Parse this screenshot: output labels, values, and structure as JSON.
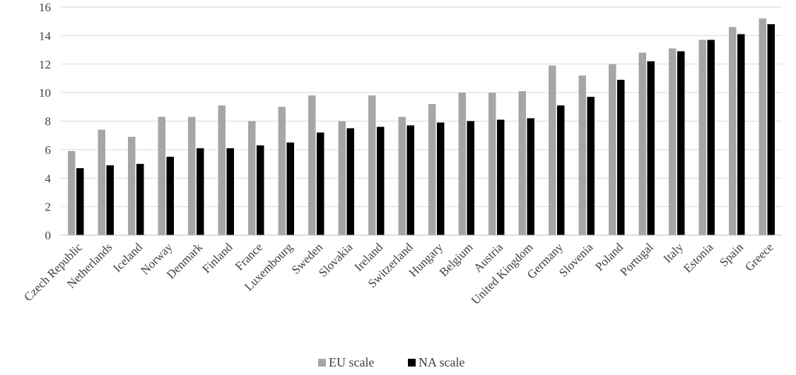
{
  "chart_data": {
    "type": "bar",
    "title": "",
    "xlabel": "",
    "ylabel": "",
    "ylim": [
      0,
      16
    ],
    "yticks": [
      0,
      2,
      4,
      6,
      8,
      10,
      12,
      14,
      16
    ],
    "grid": true,
    "legend_position": "bottom",
    "categories": [
      "Czech Republic",
      "Netherlands",
      "Iceland",
      "Norway",
      "Denmark",
      "Finland",
      "France",
      "Luxembourg",
      "Sweden",
      "Slovakia",
      "Ireland",
      "Switzerland",
      "Hungary",
      "Belgium",
      "Austria",
      "United Kingdom",
      "Germany",
      "Slovenia",
      "Poland",
      "Portugal",
      "Italy",
      "Estonia",
      "Spain",
      "Greece"
    ],
    "series": [
      {
        "name": "EU scale",
        "color": "#a6a6a6",
        "values": [
          5.9,
          7.4,
          6.9,
          8.3,
          8.3,
          9.1,
          8.0,
          9.0,
          9.8,
          8.0,
          9.8,
          8.3,
          9.2,
          10.0,
          10.0,
          10.1,
          11.9,
          11.2,
          12.0,
          12.8,
          13.1,
          13.7,
          14.6,
          15.2
        ]
      },
      {
        "name": "NA scale",
        "color": "#000000",
        "values": [
          4.7,
          4.9,
          5.0,
          5.5,
          6.1,
          6.1,
          6.3,
          6.5,
          7.2,
          7.5,
          7.6,
          7.7,
          7.9,
          8.0,
          8.1,
          8.2,
          9.1,
          9.7,
          10.9,
          12.2,
          12.9,
          13.7,
          14.1,
          14.8
        ]
      }
    ]
  }
}
